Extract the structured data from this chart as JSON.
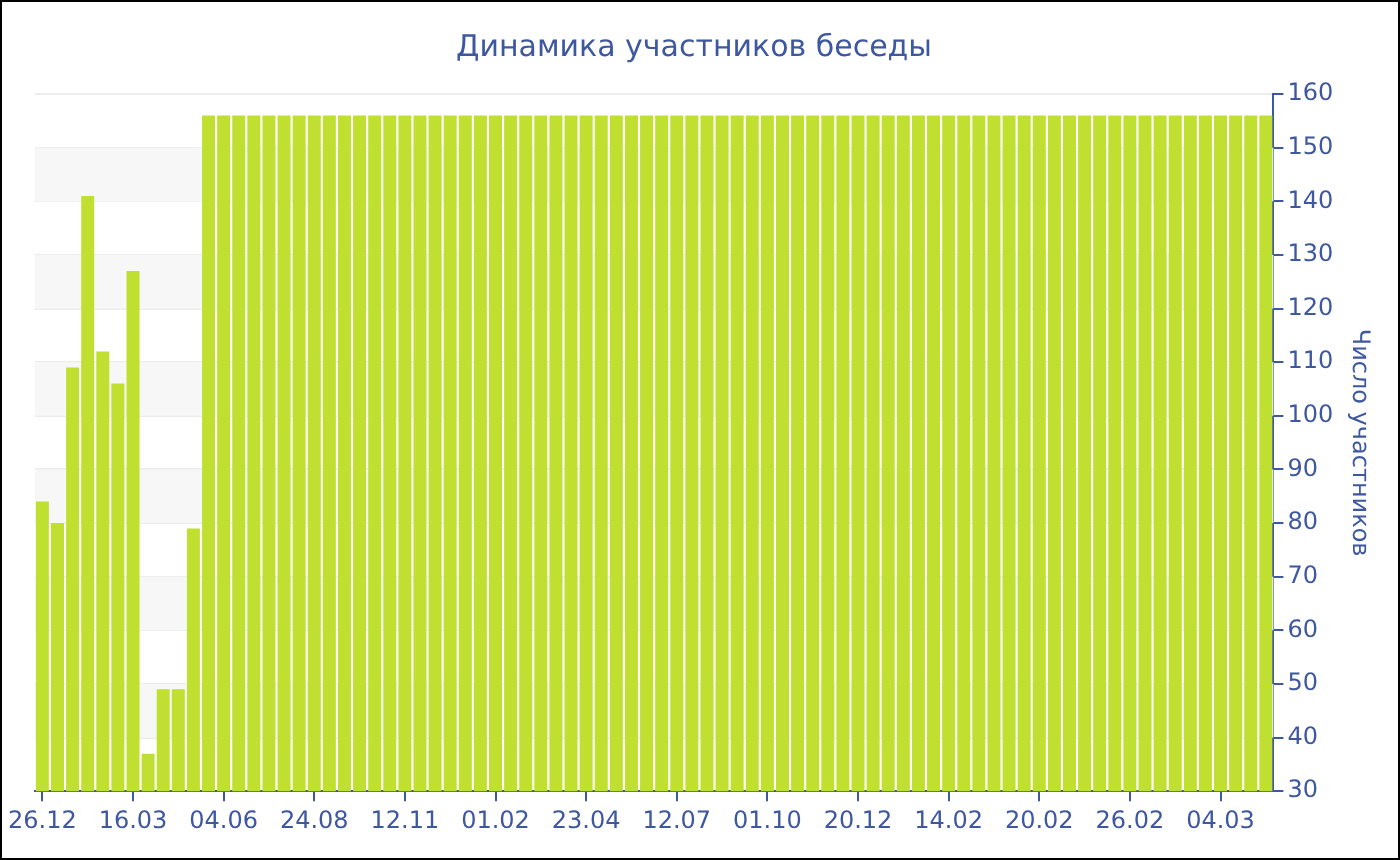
{
  "chart_data": {
    "type": "bar",
    "title": "Динамика участников беседы",
    "ylabel": "Число участников",
    "categories": [
      "26.12",
      null,
      null,
      null,
      null,
      null,
      "16.03",
      null,
      null,
      null,
      null,
      null,
      "04.06",
      null,
      null,
      null,
      null,
      null,
      "24.08",
      null,
      null,
      null,
      null,
      null,
      "12.11",
      null,
      null,
      null,
      null,
      null,
      "01.02",
      null,
      null,
      null,
      null,
      null,
      "23.04",
      null,
      null,
      null,
      null,
      null,
      "12.07",
      null,
      null,
      null,
      null,
      null,
      "01.10",
      null,
      null,
      null,
      null,
      null,
      "20.12",
      null,
      null,
      null,
      null,
      null,
      "14.02",
      null,
      null,
      null,
      null,
      null,
      "20.02",
      null,
      null,
      null,
      null,
      null,
      "26.02",
      null,
      null,
      null,
      null,
      null,
      "04.03",
      null,
      null,
      null
    ],
    "values": [
      84,
      80,
      109,
      141,
      112,
      106,
      127,
      37,
      49,
      49,
      79,
      156,
      156,
      156,
      156,
      156,
      156,
      156,
      156,
      156,
      156,
      156,
      156,
      156,
      156,
      156,
      156,
      156,
      156,
      156,
      156,
      156,
      156,
      156,
      156,
      156,
      156,
      156,
      156,
      156,
      156,
      156,
      156,
      156,
      156,
      156,
      156,
      156,
      156,
      156,
      156,
      156,
      156,
      156,
      156,
      156,
      156,
      156,
      156,
      156,
      156,
      156,
      156,
      156,
      156,
      156,
      156,
      156,
      156,
      156,
      156,
      156,
      156,
      156,
      156,
      156,
      156,
      156,
      156,
      156,
      156,
      156
    ],
    "color": "#bfe031",
    "ylim": [
      30,
      160
    ],
    "yticks": [
      30,
      40,
      50,
      60,
      70,
      80,
      90,
      100,
      110,
      120,
      130,
      140,
      150,
      160
    ],
    "grid": "y",
    "legend": false
  }
}
